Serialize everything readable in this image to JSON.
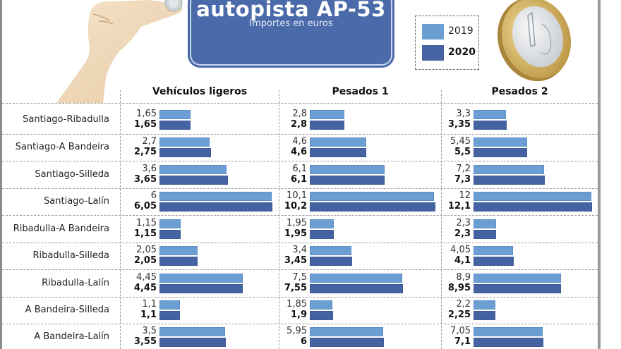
{
  "header": {
    "title": "autopista AP-53",
    "subtitle": "Importes en euros"
  },
  "colors": {
    "accent": "#4a6aa9",
    "series_2019": "#6b9fd4",
    "series_2020": "#4563a2"
  },
  "legend": [
    {
      "label": "2019",
      "color": "#6b9fd4"
    },
    {
      "label": "2020",
      "color": "#4563a2"
    }
  ],
  "chart_data": {
    "type": "bar",
    "orientation": "horizontal",
    "title": "autopista AP-53",
    "subtitle": "Importes en euros",
    "legend_position": "top-right",
    "categories": [
      "Santiago-Ribadulla",
      "Santiago-A Bandeira",
      "Santiago-Silleda",
      "Santiago-Lalín",
      "Ribadulla-A Bandeira",
      "Ribadulla-Silleda",
      "Ribadulla-Lalín",
      "A Bandeira-Silleda",
      "A Bandeira-Lalín"
    ],
    "panels": [
      {
        "title": "Vehículos ligeros",
        "series": [
          {
            "name": "2019",
            "values": [
              1.65,
              2.7,
              3.6,
              6,
              1.15,
              2.05,
              4.45,
              1.1,
              3.5
            ],
            "labels": [
              "1,65",
              "2,7",
              "3,6",
              "6",
              "1,15",
              "2,05",
              "4,45",
              "1,1",
              "3,5"
            ]
          },
          {
            "name": "2020",
            "values": [
              1.65,
              2.75,
              3.65,
              6.05,
              1.15,
              2.05,
              4.45,
              1.1,
              3.55
            ],
            "labels": [
              "1,65",
              "2,75",
              "3,65",
              "6,05",
              "1,15",
              "2,05",
              "4,45",
              "1,1",
              "3,55"
            ]
          }
        ]
      },
      {
        "title": "Pesados 1",
        "series": [
          {
            "name": "2019",
            "values": [
              2.8,
              4.6,
              6.1,
              10.1,
              1.95,
              3.4,
              7.5,
              1.85,
              5.95
            ],
            "labels": [
              "2,8",
              "4,6",
              "6,1",
              "10,1",
              "1,95",
              "3,4",
              "7,5",
              "1,85",
              "5,95"
            ]
          },
          {
            "name": "2020",
            "values": [
              2.8,
              4.6,
              6.1,
              10.2,
              1.95,
              3.45,
              7.55,
              1.9,
              6
            ],
            "labels": [
              "2,8",
              "4,6",
              "6,1",
              "10,2",
              "1,95",
              "3,45",
              "7,55",
              "1,9",
              "6"
            ]
          }
        ]
      },
      {
        "title": "Pesados 2",
        "series": [
          {
            "name": "2019",
            "values": [
              3.3,
              5.45,
              7.2,
              12,
              2.3,
              4.05,
              8.9,
              2.2,
              7.05
            ],
            "labels": [
              "3,3",
              "5,45",
              "7,2",
              "12",
              "2,3",
              "4,05",
              "8,9",
              "2,2",
              "7,05"
            ]
          },
          {
            "name": "2020",
            "values": [
              3.35,
              5.5,
              7.3,
              12.1,
              2.3,
              4.1,
              8.95,
              2.25,
              7.1
            ],
            "labels": [
              "3,35",
              "5,5",
              "7,3",
              "12,1",
              "2,3",
              "4,1",
              "8,95",
              "2,25",
              "7,1"
            ]
          }
        ]
      }
    ]
  }
}
